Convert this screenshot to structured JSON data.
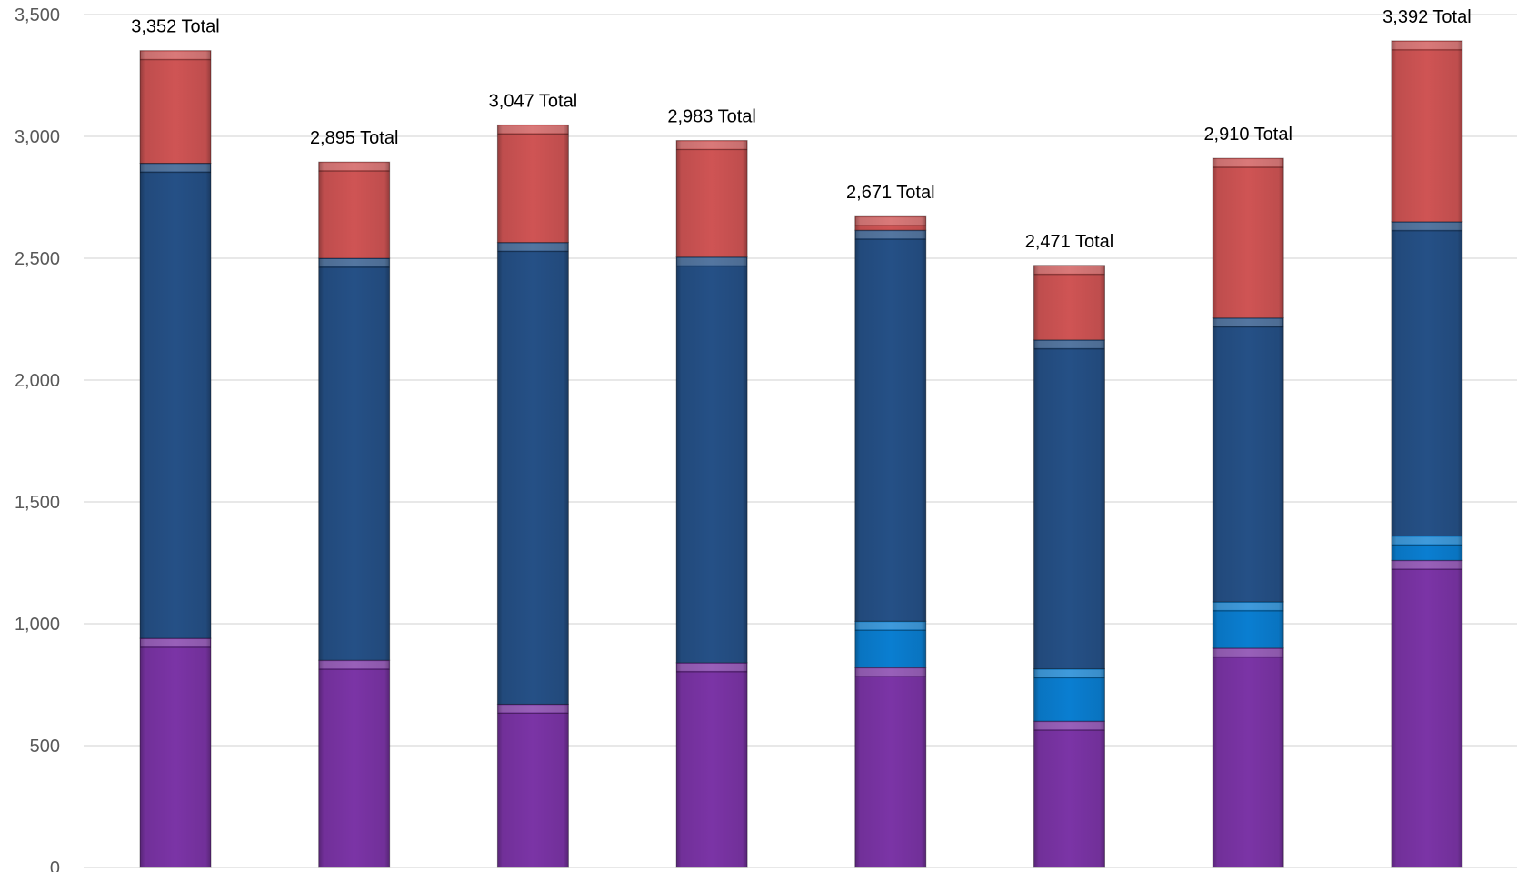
{
  "chart_data": {
    "type": "bar",
    "stacked": true,
    "title": "",
    "xlabel": "",
    "ylabel": "",
    "ylim": [
      0,
      3500
    ],
    "yticks": [
      0,
      500,
      1000,
      1500,
      2000,
      2500,
      3000,
      3500
    ],
    "ytick_labels": [
      "0",
      "500",
      "1,000",
      "1,500",
      "2,000",
      "2,500",
      "3,000",
      "3,500"
    ],
    "categories": [
      "",
      "",
      "",
      "",
      "",
      "",
      "",
      ""
    ],
    "grid": true,
    "legend": "none",
    "series": [
      {
        "color": "#7b34a6",
        "values": [
          940,
          850,
          670,
          840,
          820,
          600,
          900,
          1260
        ]
      },
      {
        "color": "#0a7ed1",
        "values": [
          0,
          0,
          0,
          0,
          190,
          215,
          190,
          100
        ]
      },
      {
        "color": "#255086",
        "values": [
          1950,
          1650,
          1895,
          1665,
          1605,
          1350,
          1165,
          1290
        ]
      },
      {
        "color": "#cf5454",
        "values": [
          462,
          395,
          482,
          478,
          56,
          306,
          655,
          742
        ]
      }
    ],
    "totals": [
      3352,
      2895,
      3047,
      2983,
      2671,
      2471,
      2910,
      3392
    ],
    "total_labels": [
      "3,352 Total",
      "2,895 Total",
      "3,047 Total",
      "2,983 Total",
      "2,671 Total",
      "2,471 Total",
      "2,910 Total",
      "3,392 Total"
    ]
  }
}
